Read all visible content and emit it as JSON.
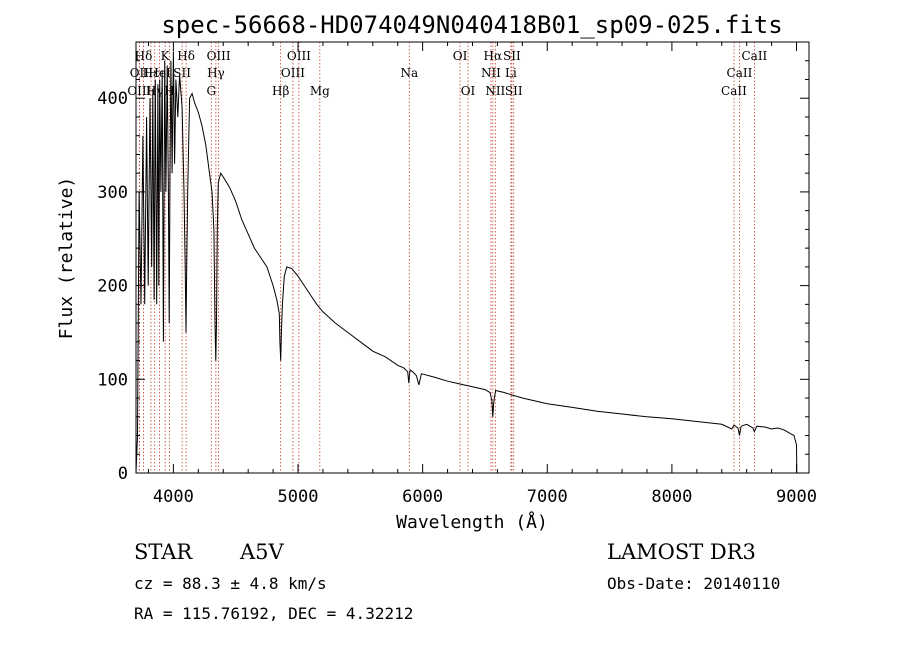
{
  "chart_data": {
    "type": "line",
    "title": "spec-56668-HD074049N040418B01_sp09-025.fits",
    "xlabel": "Wavelength (Å)",
    "ylabel": "Flux (relative)",
    "xlim": [
      3700,
      9100
    ],
    "ylim": [
      0,
      460
    ],
    "xticks": [
      4000,
      5000,
      6000,
      7000,
      8000,
      9000
    ],
    "yticks": [
      0,
      100,
      200,
      300,
      400
    ],
    "series": [
      {
        "name": "flux",
        "x": [
          3700,
          3712,
          3725,
          3740,
          3755,
          3770,
          3785,
          3798,
          3812,
          3826,
          3835,
          3845,
          3855,
          3866,
          3876,
          3883,
          3890,
          3900,
          3910,
          3920,
          3930,
          3940,
          3950,
          3960,
          3966,
          3972,
          3980,
          3990,
          4000,
          4010,
          4020,
          4035,
          4050,
          4070,
          4085,
          4095,
          4101,
          4107,
          4115,
          4130,
          4150,
          4170,
          4200,
          4230,
          4260,
          4290,
          4310,
          4325,
          4334,
          4340,
          4346,
          4352,
          4360,
          4380,
          4400,
          4450,
          4500,
          4550,
          4600,
          4650,
          4700,
          4750,
          4800,
          4830,
          4850,
          4855,
          4861,
          4867,
          4875,
          4890,
          4910,
          4950,
          5000,
          5050,
          5100,
          5150,
          5200,
          5300,
          5400,
          5500,
          5600,
          5700,
          5800,
          5850,
          5880,
          5889,
          5895,
          5900,
          5920,
          5950,
          5970,
          5990,
          6100,
          6200,
          6300,
          6400,
          6500,
          6540,
          6555,
          6563,
          6570,
          6585,
          6650,
          6700,
          6800,
          6900,
          7000,
          7200,
          7400,
          7600,
          7800,
          8000,
          8200,
          8400,
          8480,
          8498,
          8510,
          8530,
          8542,
          8555,
          8600,
          8650,
          8662,
          8680,
          8750,
          8800,
          8850,
          8900,
          8950,
          8980,
          9000,
          9002
        ],
        "values": [
          0,
          40,
          300,
          180,
          360,
          180,
          380,
          200,
          400,
          220,
          410,
          185,
          420,
          180,
          415,
          200,
          420,
          300,
          430,
          140,
          440,
          300,
          435,
          300,
          160,
          300,
          440,
          320,
          450,
          330,
          420,
          380,
          425,
          390,
          300,
          220,
          150,
          220,
          300,
          400,
          405,
          395,
          385,
          370,
          350,
          320,
          300,
          260,
          160,
          120,
          160,
          260,
          310,
          320,
          316,
          305,
          290,
          270,
          255,
          240,
          230,
          220,
          200,
          185,
          170,
          140,
          120,
          150,
          180,
          210,
          220,
          218,
          210,
          200,
          190,
          180,
          172,
          160,
          150,
          140,
          130,
          124,
          115,
          112,
          108,
          96,
          106,
          110,
          108,
          104,
          94,
          106,
          102,
          98,
          95,
          92,
          89,
          86,
          78,
          60,
          75,
          88,
          86,
          84,
          80,
          77,
          74,
          70,
          66,
          63,
          60,
          58,
          55,
          52,
          47,
          51,
          50,
          48,
          40,
          50,
          52,
          48,
          44,
          50,
          49,
          47,
          48,
          46,
          42,
          40,
          30,
          0
        ]
      }
    ],
    "lines": [
      {
        "label": "Hδ",
        "x": 3760,
        "row": 0
      },
      {
        "label": "OII",
        "x": 3727,
        "row": 1
      },
      {
        "label": "OIII",
        "x": 3727,
        "row": 2
      },
      {
        "label": "Hε",
        "x": 3820,
        "row": 1
      },
      {
        "label": "Hγ",
        "x": 3850,
        "row": 2
      },
      {
        "label": "K",
        "x": 3934,
        "row": 0
      },
      {
        "label": "HeI",
        "x": 3889,
        "row": 1
      },
      {
        "label": "H",
        "x": 3969,
        "row": 2
      },
      {
        "label": "SII",
        "x": 4070,
        "row": 1
      },
      {
        "label": "Hδ",
        "x": 4102,
        "row": 0
      },
      {
        "label": "OIII",
        "x": 4363,
        "row": 0
      },
      {
        "label": "Hγ",
        "x": 4341,
        "row": 1
      },
      {
        "label": "G",
        "x": 4304,
        "row": 2
      },
      {
        "label": "OIII",
        "x": 5007,
        "row": 0
      },
      {
        "label": "OIII",
        "x": 4959,
        "row": 1
      },
      {
        "label": "Hβ",
        "x": 4861,
        "row": 2
      },
      {
        "label": "Mg",
        "x": 5175,
        "row": 2
      },
      {
        "label": "Na",
        "x": 5893,
        "row": 1
      },
      {
        "label": "OI",
        "x": 6300,
        "row": 0
      },
      {
        "label": "OI",
        "x": 6364,
        "row": 2
      },
      {
        "label": "Hα",
        "x": 6563,
        "row": 0
      },
      {
        "label": "NII",
        "x": 6548,
        "row": 1
      },
      {
        "label": "NII",
        "x": 6583,
        "row": 2
      },
      {
        "label": "SII",
        "x": 6716,
        "row": 0
      },
      {
        "label": "Li",
        "x": 6708,
        "row": 1
      },
      {
        "label": "SII",
        "x": 6731,
        "row": 2
      },
      {
        "label": "CaII",
        "x": 8662,
        "row": 0
      },
      {
        "label": "CaII",
        "x": 8542,
        "row": 1
      },
      {
        "label": "CaII",
        "x": 8498,
        "row": 2
      }
    ]
  },
  "info": {
    "class": "STAR",
    "subclass": "A5V",
    "survey": "LAMOST DR3",
    "cz": "cz = 88.3 ± 4.8 km/s",
    "obs_date": "Obs-Date: 20140110",
    "coords": "RA = 115.76192, DEC =   4.32212"
  }
}
